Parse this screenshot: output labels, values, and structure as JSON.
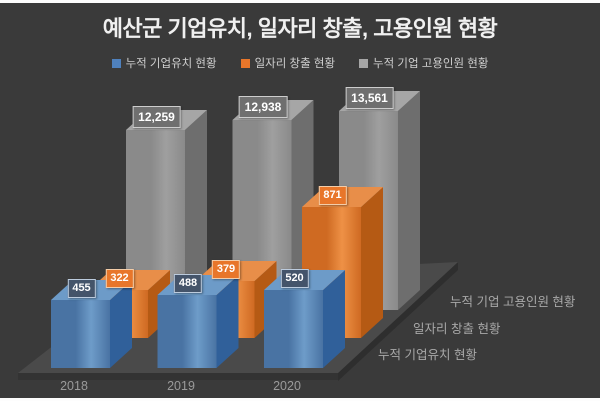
{
  "title": "예산군 기업유치, 일자리 창출, 고용인원 현황",
  "legend": [
    {
      "label": "누적 기업유치 현황",
      "color": "#4f81bd"
    },
    {
      "label": "일자리 창출 현황",
      "color": "#e8762a"
    },
    {
      "label": "누적 기업 고용인원 현황",
      "color": "#a6a6a6"
    }
  ],
  "chart_data": {
    "type": "bar",
    "projection": "3d",
    "title": "예산군 기업유치, 일자리 창출, 고용인원 현황",
    "categories": [
      "2018",
      "2019",
      "2020"
    ],
    "series": [
      {
        "name": "누적 기업유치 현황",
        "values": [
          455,
          488,
          520
        ],
        "value_labels": [
          "455",
          "488",
          "520"
        ],
        "color": "#4f81bd"
      },
      {
        "name": "일자리 창출 현황",
        "values": [
          322,
          379,
          871
        ],
        "value_labels": [
          "322",
          "379",
          "871"
        ],
        "color": "#e8762a"
      },
      {
        "name": "누적 기업 고용인원 현황",
        "values": [
          12259,
          12938,
          13561
        ],
        "value_labels": [
          "12,259",
          "12,938",
          "13,561"
        ],
        "color": "#a6a6a6"
      }
    ],
    "depth_axis_labels": [
      "누적 기업유치 현황",
      "일자리 창출 현황",
      "누적 기업 고용인원 현황"
    ],
    "legend_position": "top",
    "grid": false,
    "value_axis_visible": false,
    "colors": {
      "background": "#3a3a3a",
      "floor": "#4a4a4a",
      "floor_edge_front": "#333333",
      "floor_edge_right": "#2e2e2e",
      "title_text": "#f0f0f0",
      "legend_text": "#cfcfcf",
      "category_text": "#9a9a9a",
      "depth_label_text": "#a8a8a8",
      "series_faces": [
        {
          "front_dark": "#4973a3",
          "front_light": "#6e9cc9",
          "top": "#6d9bc8",
          "side": "#30609a",
          "label_bg": "#44546a",
          "label_border": "#bccbdd"
        },
        {
          "front_dark": "#cf6a22",
          "front_light": "#ee9146",
          "top": "#e88e49",
          "side": "#b55a14",
          "label_bg": "#e8762a",
          "label_border": "#f3cda9"
        },
        {
          "front_dark": "#8a8a8a",
          "front_light": "#9f9f9f",
          "top": "#a6a6a6",
          "side": "#6e6e6e",
          "label_bg": "#6f6f6f",
          "label_border": "#cdcdcd"
        }
      ]
    }
  }
}
